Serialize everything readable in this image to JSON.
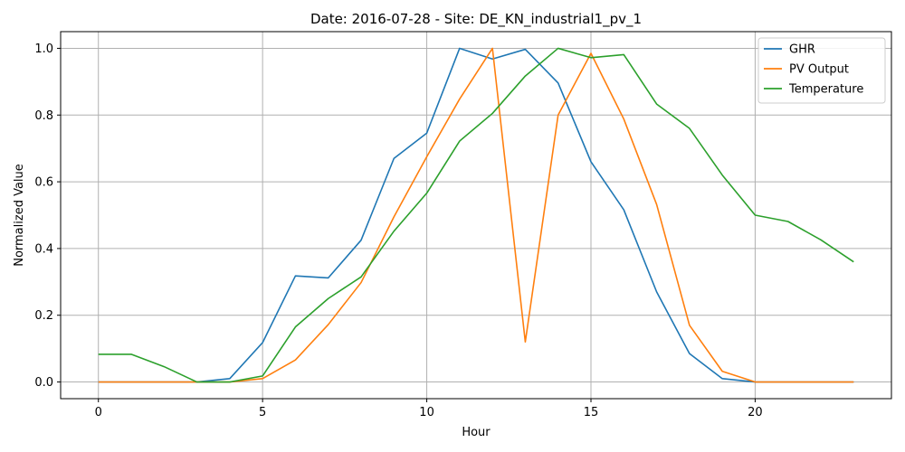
{
  "chart_data": {
    "type": "line",
    "title": "Date: 2016-07-28 - Site: DE_KN_industrial1_pv_1",
    "xlabel": "Hour",
    "ylabel": "Normalized Value",
    "xlim": [
      -1.15,
      24.15
    ],
    "ylim": [
      -0.05,
      1.05
    ],
    "xticks": [
      0,
      5,
      10,
      15,
      20
    ],
    "yticks": [
      0.0,
      0.2,
      0.4,
      0.6,
      0.8,
      1.0
    ],
    "xtick_labels": [
      "0",
      "5",
      "10",
      "15",
      "20"
    ],
    "ytick_labels": [
      "0.0",
      "0.2",
      "0.4",
      "0.6",
      "0.8",
      "1.0"
    ],
    "grid": true,
    "legend_position": "top-right",
    "x": [
      0,
      1,
      2,
      3,
      4,
      5,
      6,
      7,
      8,
      9,
      10,
      11,
      12,
      13,
      14,
      15,
      16,
      17,
      18,
      19,
      20,
      21,
      22,
      23
    ],
    "series": [
      {
        "name": "GHR",
        "color": "#1f77b4",
        "values": [
          0.0,
          0.0,
          0.0,
          0.0,
          0.01,
          0.118,
          0.318,
          0.312,
          0.425,
          0.67,
          0.746,
          1.0,
          0.968,
          0.997,
          0.896,
          0.66,
          0.516,
          0.27,
          0.085,
          0.01,
          0.0,
          0.0,
          0.0,
          0.0
        ]
      },
      {
        "name": "PV Output",
        "color": "#ff7f0e",
        "values": [
          0.0,
          0.0,
          0.0,
          0.0,
          0.0,
          0.01,
          0.066,
          0.172,
          0.298,
          0.495,
          0.675,
          0.848,
          1.0,
          0.12,
          0.8,
          0.985,
          0.788,
          0.532,
          0.17,
          0.032,
          0.0,
          0.0,
          0.0,
          0.0
        ]
      },
      {
        "name": "Temperature",
        "color": "#2ca02c",
        "values": [
          0.083,
          0.083,
          0.046,
          0.0,
          0.0,
          0.018,
          0.165,
          0.25,
          0.315,
          0.452,
          0.566,
          0.722,
          0.805,
          0.917,
          1.0,
          0.972,
          0.981,
          0.833,
          0.76,
          0.62,
          0.5,
          0.481,
          0.426,
          0.36
        ]
      }
    ]
  }
}
